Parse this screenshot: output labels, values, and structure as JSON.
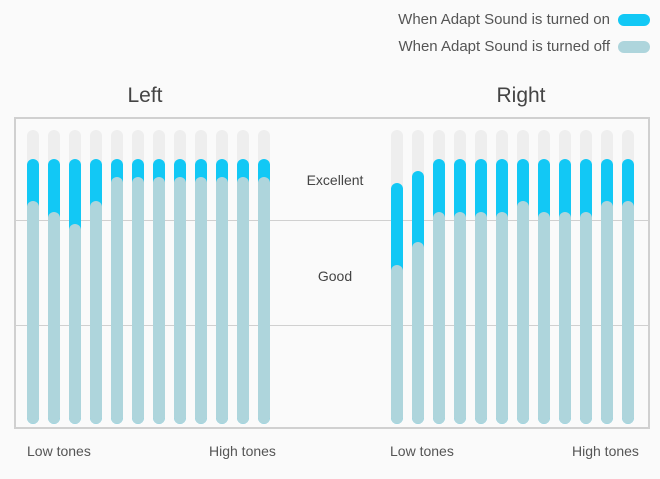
{
  "legend": {
    "on_label": "When Adapt Sound is turned on",
    "off_label": "When Adapt Sound is turned off"
  },
  "colors": {
    "on": "#12c8f5",
    "off": "#aed5dc",
    "track": "#eeeeee",
    "grid": "#d0d0d0"
  },
  "chart_data": {
    "type": "bar",
    "zones": [
      "Excellent",
      "Good"
    ],
    "scale_note": "0 = bottom of track, 1 = top of track",
    "series": [
      {
        "name": "When Adapt Sound is turned on",
        "key": "on"
      },
      {
        "name": "When Adapt Sound is turned off",
        "key": "off"
      }
    ],
    "panels": [
      {
        "title": "Left",
        "low_label": "Low tones",
        "high_label": "High tones",
        "on": [
          0.9,
          0.9,
          0.9,
          0.9,
          0.9,
          0.9,
          0.9,
          0.9,
          0.9,
          0.9,
          0.9,
          0.9
        ],
        "off": [
          0.76,
          0.72,
          0.68,
          0.76,
          0.84,
          0.84,
          0.84,
          0.84,
          0.84,
          0.84,
          0.84,
          0.84
        ]
      },
      {
        "title": "Right",
        "low_label": "Low tones",
        "high_label": "High tones",
        "on": [
          0.82,
          0.86,
          0.9,
          0.9,
          0.9,
          0.9,
          0.9,
          0.9,
          0.9,
          0.9,
          0.9,
          0.9
        ],
        "off": [
          0.54,
          0.62,
          0.72,
          0.72,
          0.72,
          0.72,
          0.76,
          0.72,
          0.72,
          0.72,
          0.76,
          0.76
        ]
      }
    ]
  }
}
